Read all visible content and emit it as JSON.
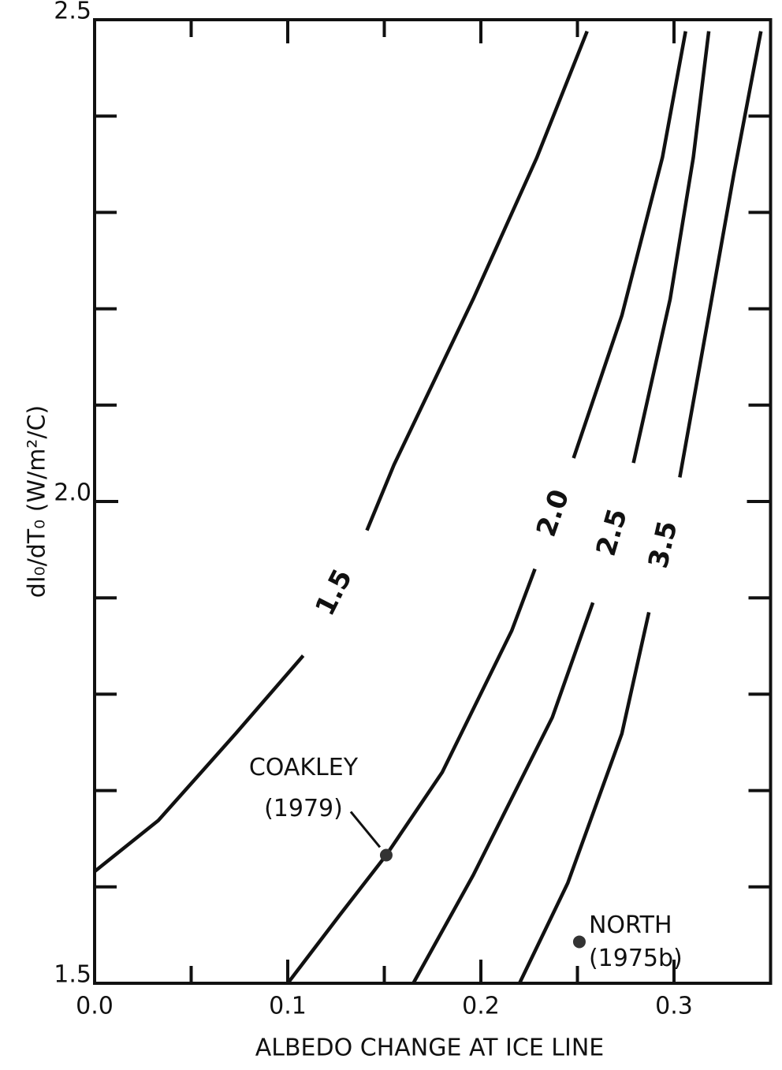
{
  "chart_data": {
    "type": "line",
    "x_label": "ALBEDO CHANGE AT ICE LINE",
    "y_label": "dI₀/dT₀  (W/m²/C)",
    "xlim": [
      0,
      0.35
    ],
    "ylim": [
      1.5,
      2.5
    ],
    "xticks": [
      {
        "value": 0,
        "label": "0.0"
      },
      {
        "value": 0.1,
        "label": "0.1"
      },
      {
        "value": 0.2,
        "label": "0.2"
      },
      {
        "value": 0.3,
        "label": "0.3"
      }
    ],
    "xminor": [
      0.05,
      0.15,
      0.25
    ],
    "yticks": [
      1.5,
      {
        "value": 2,
        "label": "2.0"
      },
      2.5
    ],
    "yminor": [
      1.6,
      1.7,
      1.8,
      1.9,
      2.1,
      2.2,
      2.3,
      2.4
    ],
    "color": "#111111",
    "series": [
      {
        "name": "1.5",
        "x": [
          0,
          0.033,
          0.073,
          0.108,
          null,
          0.141,
          0.155,
          0.196,
          0.229,
          0.255
        ],
        "y": [
          1.616,
          1.669,
          1.759,
          1.84,
          null,
          1.97,
          2.038,
          2.21,
          2.357,
          2.488
        ]
      },
      {
        "name": "2.0",
        "x": [
          0.1,
          0.127,
          0.151,
          0.18,
          0.216,
          0.228,
          null,
          0.248,
          0.273,
          0.294,
          0.306
        ],
        "y": [
          1.5,
          1.571,
          1.633,
          1.719,
          1.866,
          1.93,
          null,
          2.045,
          2.193,
          2.357,
          2.488
        ]
      },
      {
        "name": "2.5",
        "x": [
          0.165,
          0.196,
          0.237,
          0.258,
          null,
          0.279,
          0.298,
          0.31,
          0.318
        ],
        "y": [
          1.5,
          1.612,
          1.776,
          1.895,
          null,
          2.04,
          2.21,
          2.357,
          2.488
        ]
      },
      {
        "name": "3.5",
        "x": [
          0.22,
          0.245,
          0.273,
          0.287,
          null,
          0.303,
          0.318,
          0.331,
          0.345
        ],
        "y": [
          1.5,
          1.604,
          1.759,
          1.885,
          null,
          2.025,
          2.193,
          2.34,
          2.488
        ]
      }
    ],
    "points": [
      {
        "label": [
          "COAKLEY",
          "(1979)"
        ],
        "x": 0.151,
        "y": 1.633
      },
      {
        "label": [
          "NORTH",
          "(1975b)"
        ],
        "x": 0.251,
        "y": 1.543
      }
    ]
  }
}
